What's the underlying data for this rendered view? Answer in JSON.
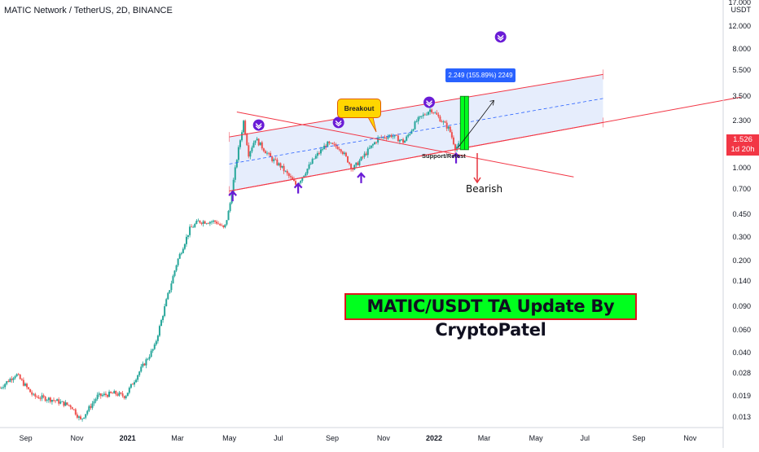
{
  "header": {
    "symbol_title": "MATIC Network / TetherUS, 2D, BINANCE"
  },
  "price_badge": {
    "price": "1.526",
    "countdown": "1d 20h"
  },
  "annotations": {
    "breakout": "Breakout",
    "support_retest": "Support/Retest",
    "bearish": "Bearish",
    "measure": "2.249 (155.89%) 2249",
    "banner": "MATIC/USDT TA Update By CryptoPatel"
  },
  "colors": {
    "up_candle": "#26a69a",
    "down_candle": "#ef5350",
    "channel_line": "#f23645",
    "channel_fill": "#dbe6fb",
    "marker": "#6a1cd6",
    "banner_bg": "#00ff1e",
    "measure_bar": "#00ff1e"
  },
  "chart_data": {
    "type": "candlestick",
    "title": "MATIC Network / TetherUS, 2D, BINANCE",
    "y_scale": "log",
    "ylim": [
      0.011,
      17.0
    ],
    "y_unit": "USDT",
    "y_ticks": [
      "17.000",
      "12.000",
      "8.000",
      "5.500",
      "3.500",
      "2.300",
      "1.526",
      "1.000",
      "0.700",
      "0.450",
      "0.300",
      "0.200",
      "0.140",
      "0.090",
      "0.060",
      "0.040",
      "0.028",
      "0.019",
      "0.013"
    ],
    "x_ticks": [
      {
        "label": "Sep",
        "bold": false
      },
      {
        "label": "Nov",
        "bold": false
      },
      {
        "label": "2021",
        "bold": true
      },
      {
        "label": "Mar",
        "bold": false
      },
      {
        "label": "May",
        "bold": false
      },
      {
        "label": "Jul",
        "bold": false
      },
      {
        "label": "Sep",
        "bold": false
      },
      {
        "label": "Nov",
        "bold": false
      },
      {
        "label": "2022",
        "bold": true
      },
      {
        "label": "Mar",
        "bold": false
      },
      {
        "label": "May",
        "bold": false
      },
      {
        "label": "Jul",
        "bold": false
      },
      {
        "label": "Sep",
        "bold": false
      },
      {
        "label": "Nov",
        "bold": false
      }
    ],
    "x_range_months": [
      "2020-08",
      "2022-12"
    ],
    "last_price": 1.526,
    "price_path": [
      {
        "t": "2020-08-01",
        "p": 0.022
      },
      {
        "t": "2020-08-20",
        "p": 0.028
      },
      {
        "t": "2020-09-10",
        "p": 0.019
      },
      {
        "t": "2020-10-01",
        "p": 0.018
      },
      {
        "t": "2020-10-25",
        "p": 0.016
      },
      {
        "t": "2020-11-05",
        "p": 0.0125
      },
      {
        "t": "2020-11-25",
        "p": 0.019
      },
      {
        "t": "2020-12-15",
        "p": 0.02
      },
      {
        "t": "2020-12-28",
        "p": 0.019
      },
      {
        "t": "2021-01-15",
        "p": 0.03
      },
      {
        "t": "2021-02-01",
        "p": 0.045
      },
      {
        "t": "2021-02-15",
        "p": 0.1
      },
      {
        "t": "2021-02-28",
        "p": 0.2
      },
      {
        "t": "2021-03-15",
        "p": 0.35
      },
      {
        "t": "2021-03-25",
        "p": 0.4
      },
      {
        "t": "2021-04-15",
        "p": 0.4
      },
      {
        "t": "2021-04-25",
        "p": 0.35
      },
      {
        "t": "2021-05-01",
        "p": 0.5
      },
      {
        "t": "2021-05-10",
        "p": 1.2
      },
      {
        "t": "2021-05-18",
        "p": 2.3
      },
      {
        "t": "2021-05-24",
        "p": 1.3
      },
      {
        "t": "2021-06-01",
        "p": 1.7
      },
      {
        "t": "2021-06-20",
        "p": 1.2
      },
      {
        "t": "2021-07-01",
        "p": 1.05
      },
      {
        "t": "2021-07-20",
        "p": 0.75
      },
      {
        "t": "2021-08-10",
        "p": 1.2
      },
      {
        "t": "2021-08-25",
        "p": 1.55
      },
      {
        "t": "2021-09-10",
        "p": 1.45
      },
      {
        "t": "2021-09-25",
        "p": 1.0
      },
      {
        "t": "2021-10-10",
        "p": 1.3
      },
      {
        "t": "2021-10-25",
        "p": 1.7
      },
      {
        "t": "2021-11-10",
        "p": 1.8
      },
      {
        "t": "2021-11-25",
        "p": 1.6
      },
      {
        "t": "2021-12-10",
        "p": 2.3
      },
      {
        "t": "2021-12-27",
        "p": 2.85
      },
      {
        "t": "2022-01-08",
        "p": 2.35
      },
      {
        "t": "2022-01-18",
        "p": 2.0
      },
      {
        "t": "2022-01-25",
        "p": 1.45
      },
      {
        "t": "2022-01-30",
        "p": 1.526
      }
    ],
    "channel": {
      "lower": [
        {
          "t": "2021-05-01",
          "p": 0.68
        },
        {
          "t": "2022-07-20",
          "p": 2.25
        }
      ],
      "upper": [
        {
          "t": "2021-05-01",
          "p": 1.75
        },
        {
          "t": "2022-07-20",
          "p": 5.2
        }
      ],
      "mid": [
        {
          "t": "2021-05-01",
          "p": 1.09
        },
        {
          "t": "2022-07-20",
          "p": 3.42
        }
      ]
    },
    "support_line": [
      {
        "t": "2021-05-01",
        "p": 0.68
      },
      {
        "t": "2022-12-31",
        "p": 3.5
      }
    ],
    "descending_line": [
      {
        "t": "2021-05-10",
        "p": 2.7
      },
      {
        "t": "2022-06-15",
        "p": 0.87
      }
    ],
    "measure": {
      "from": {
        "t": "2022-02-05",
        "p": 1.4
      },
      "to": {
        "t": "2022-02-05",
        "p": 3.55
      },
      "text": "2.249 (155.89%) 2249"
    },
    "projection": [
      {
        "t": "2022-01-28",
        "p": 1.45
      },
      {
        "t": "2022-02-12",
        "p": 1.9
      },
      {
        "t": "2022-03-12",
        "p": 3.3
      }
    ],
    "markers_down": [
      {
        "t": "2021-06-05",
        "p": 2.15
      },
      {
        "t": "2021-09-08",
        "p": 2.25
      },
      {
        "t": "2021-12-25",
        "p": 3.2
      },
      {
        "t": "2022-03-20",
        "p": 10.0
      }
    ],
    "markers_up": [
      {
        "t": "2021-05-05",
        "p": 0.62
      },
      {
        "t": "2021-07-22",
        "p": 0.71
      },
      {
        "t": "2021-10-05",
        "p": 0.85
      },
      {
        "t": "2022-01-26",
        "p": 1.2
      }
    ]
  }
}
